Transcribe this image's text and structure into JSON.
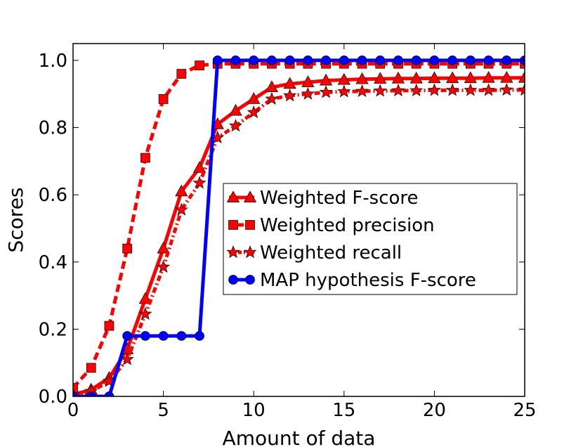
{
  "chart_data": {
    "type": "line",
    "title": "",
    "xlabel": "Amount of data",
    "ylabel": "Scores",
    "xlim": [
      0,
      25
    ],
    "ylim": [
      0.0,
      1.05
    ],
    "grid": false,
    "legend_position": "center-right",
    "xticks": [
      0,
      5,
      10,
      15,
      20,
      25
    ],
    "xtick_labels": [
      "0",
      "5",
      "10",
      "15",
      "20",
      "25"
    ],
    "yticks": [
      0.0,
      0.2,
      0.4,
      0.6,
      0.8,
      1.0
    ],
    "ytick_labels": [
      "0.0",
      "0.2",
      "0.4",
      "0.6",
      "0.8",
      "1.0"
    ],
    "x": [
      0,
      1,
      2,
      3,
      4,
      5,
      6,
      7,
      8,
      9,
      10,
      11,
      12,
      13,
      14,
      15,
      16,
      17,
      18,
      19,
      20,
      21,
      22,
      23,
      24,
      25
    ],
    "series": [
      {
        "name": "Weighted F-score",
        "color": "#ff0000",
        "marker": "triangle",
        "line_style": "solid",
        "values": [
          0.005,
          0.02,
          0.055,
          0.14,
          0.29,
          0.44,
          0.61,
          0.68,
          0.81,
          0.85,
          0.885,
          0.92,
          0.93,
          0.935,
          0.94,
          0.942,
          0.944,
          0.945,
          0.946,
          0.946,
          0.947,
          0.947,
          0.947,
          0.948,
          0.948,
          0.948
        ]
      },
      {
        "name": "Weighted precision",
        "color": "#ff0000",
        "marker": "square",
        "line_style": "dashed",
        "values": [
          0.025,
          0.085,
          0.21,
          0.44,
          0.71,
          0.885,
          0.96,
          0.985,
          0.99,
          0.99,
          0.99,
          0.99,
          0.99,
          0.99,
          0.99,
          0.99,
          0.99,
          0.99,
          0.99,
          0.99,
          0.99,
          0.99,
          0.99,
          0.99,
          0.99,
          0.99
        ]
      },
      {
        "name": "Weighted recall",
        "color": "#ff0000",
        "marker": "star",
        "line_style": "dashdot",
        "values": [
          0.005,
          0.015,
          0.045,
          0.11,
          0.245,
          0.385,
          0.555,
          0.635,
          0.77,
          0.805,
          0.845,
          0.885,
          0.895,
          0.9,
          0.905,
          0.907,
          0.908,
          0.909,
          0.91,
          0.91,
          0.911,
          0.911,
          0.911,
          0.911,
          0.912,
          0.912
        ]
      },
      {
        "name": "MAP hypothesis F-score",
        "color": "#0000ff",
        "marker": "circle",
        "line_style": "solid",
        "values": [
          0.0,
          0.0,
          0.0,
          0.18,
          0.18,
          0.18,
          0.18,
          0.18,
          1.0,
          1.0,
          1.0,
          1.0,
          1.0,
          1.0,
          1.0,
          1.0,
          1.0,
          1.0,
          1.0,
          1.0,
          1.0,
          1.0,
          1.0,
          1.0,
          1.0,
          1.0
        ]
      }
    ]
  }
}
